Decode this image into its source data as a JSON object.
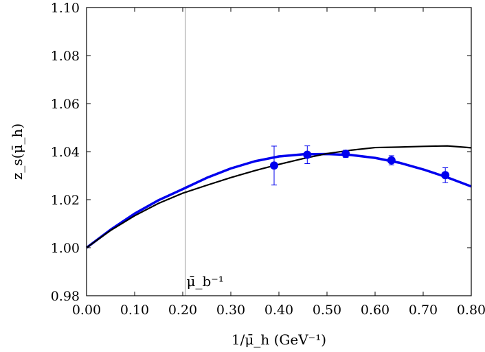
{
  "chart_data": {
    "type": "line",
    "xlabel": "1/μ̄_h (GeV⁻¹)",
    "ylabel": "z_s(μ̄_h)",
    "xlim": [
      0.0,
      0.8
    ],
    "ylim": [
      0.98,
      1.1
    ],
    "grid": false,
    "x_ticks": [
      "0.00",
      "0.10",
      "0.20",
      "0.30",
      "0.40",
      "0.50",
      "0.60",
      "0.70",
      "0.80"
    ],
    "y_ticks": [
      "0.98",
      "1.00",
      "1.02",
      "1.04",
      "1.06",
      "1.08",
      "1.10"
    ],
    "vline": {
      "x": 0.205,
      "label": "μ̄_b⁻¹",
      "color": "#999999"
    },
    "points": {
      "color": "#0000ee",
      "x": [
        0.39,
        0.459,
        0.539,
        0.634,
        0.746
      ],
      "y": [
        1.0342,
        1.0387,
        1.0391,
        1.0364,
        1.0302
      ],
      "yerr": [
        0.0081,
        0.0037,
        0.0015,
        0.0019,
        0.0031
      ]
    },
    "series": [
      {
        "color": "#0000ee",
        "x": [
          0.0,
          0.05,
          0.1,
          0.15,
          0.2,
          0.25,
          0.3,
          0.35,
          0.4,
          0.45,
          0.5,
          0.55,
          0.6,
          0.65,
          0.7,
          0.75,
          0.8
        ],
        "y": [
          1.0,
          1.0075,
          1.0142,
          1.0198,
          1.0244,
          1.0291,
          1.033,
          1.036,
          1.038,
          1.0389,
          1.039,
          1.0386,
          1.0374,
          1.0354,
          1.0326,
          1.0293,
          1.0255
        ]
      },
      {
        "color": "#000000",
        "x": [
          0.0,
          0.05,
          0.1,
          0.15,
          0.2,
          0.25,
          0.3,
          0.35,
          0.4,
          0.45,
          0.5,
          0.55,
          0.6,
          0.65,
          0.7,
          0.75,
          0.8
        ],
        "y": [
          1.0,
          1.0072,
          1.0133,
          1.0185,
          1.0227,
          1.026,
          1.0292,
          1.0321,
          1.0347,
          1.0371,
          1.0392,
          1.0406,
          1.0417,
          1.0419,
          1.0422,
          1.0424,
          1.0416
        ]
      }
    ]
  }
}
